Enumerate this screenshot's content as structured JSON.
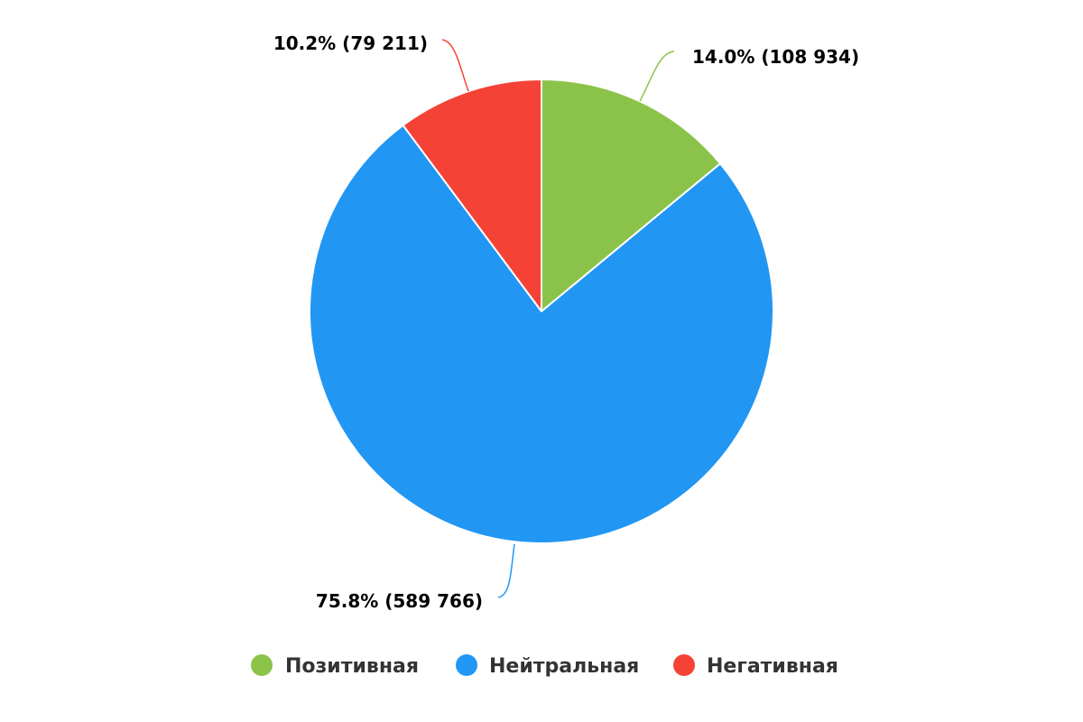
{
  "chart_data": {
    "type": "pie",
    "title": "",
    "legend_position": "bottom",
    "categories": [
      "Позитивная",
      "Нейтральная",
      "Негативная"
    ],
    "series": [
      {
        "values": [
          108934,
          589766,
          79211
        ],
        "percent": [
          14.0,
          75.8,
          10.2
        ],
        "colors": [
          "#8bc34a",
          "#2196f3",
          "#f44336"
        ]
      }
    ],
    "data_labels": [
      "14.0% (108 934)",
      "75.8% (589 766)",
      "10.2% (79 211)"
    ]
  }
}
